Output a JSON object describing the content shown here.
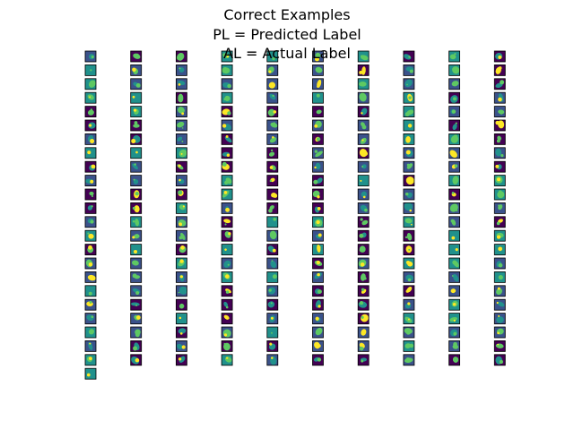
{
  "title": {
    "line1": "Correct Examples",
    "line2": "PL = Predicted Label",
    "line3": "AL = Actual Label"
  },
  "grid": {
    "columns": 10,
    "rows_per_column": [
      24,
      23,
      23,
      23,
      23,
      23,
      23,
      23,
      23,
      23
    ]
  },
  "colors": {
    "colormap": "viridis",
    "dark": "#440154",
    "low": "#3b528b",
    "mid": "#21918c",
    "high": "#5ec962",
    "bright": "#fde725",
    "tile_border": "#000000"
  }
}
